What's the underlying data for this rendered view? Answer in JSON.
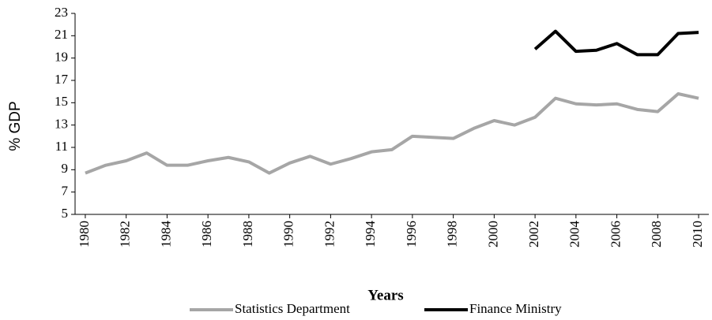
{
  "chart_data": {
    "type": "line",
    "x": [
      1980,
      1981,
      1982,
      1983,
      1984,
      1985,
      1986,
      1987,
      1988,
      1989,
      1990,
      1991,
      1992,
      1993,
      1994,
      1995,
      1996,
      1997,
      1998,
      1999,
      2000,
      2001,
      2002,
      2003,
      2004,
      2005,
      2006,
      2007,
      2008,
      2009,
      2010
    ],
    "series": [
      {
        "name": "Statistics Department",
        "color": "#a6a6a6",
        "values": [
          8.7,
          9.4,
          9.8,
          10.5,
          9.4,
          9.4,
          9.8,
          10.1,
          9.7,
          8.7,
          9.6,
          10.2,
          9.5,
          10.0,
          10.6,
          10.8,
          12.0,
          11.9,
          11.8,
          12.7,
          13.4,
          13.0,
          13.7,
          15.4,
          14.9,
          14.8,
          14.9,
          14.4,
          14.2,
          15.8,
          15.4
        ]
      },
      {
        "name": "Finance Ministry",
        "color": "#000000",
        "values": [
          null,
          null,
          null,
          null,
          null,
          null,
          null,
          null,
          null,
          null,
          null,
          null,
          null,
          null,
          null,
          null,
          null,
          null,
          null,
          null,
          null,
          null,
          19.8,
          21.4,
          19.6,
          19.7,
          20.3,
          19.3,
          19.3,
          21.2,
          21.3
        ]
      }
    ],
    "xlabel": "Years",
    "ylabel": "% GDP",
    "xlim": [
      1979.5,
      2010.5
    ],
    "xticks": [
      1980,
      1982,
      1984,
      1986,
      1988,
      1990,
      1992,
      1994,
      1996,
      1998,
      2000,
      2002,
      2004,
      2006,
      2008,
      2010
    ],
    "ylim": [
      5,
      23
    ],
    "yticks": [
      5,
      7,
      9,
      11,
      13,
      15,
      17,
      19,
      21,
      23
    ],
    "grid": false,
    "legend": "bottom"
  }
}
